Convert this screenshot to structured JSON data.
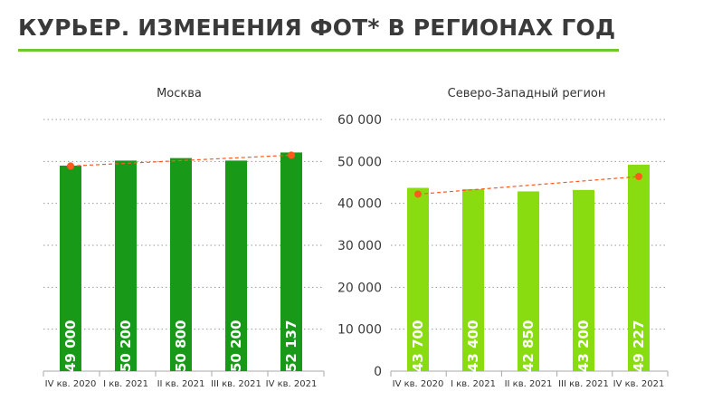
{
  "title": "КУРЬЕР. ИЗМЕНЕНИЯ ФОТ* В РЕГИОНАХ ГОД",
  "colors": {
    "accent": "#6fc82e",
    "moscow_bar": "#189a18",
    "nw_bar": "#88dc10",
    "trend": "#ff5a1e"
  },
  "chart_data": [
    {
      "type": "bar",
      "title": "Москва",
      "categories": [
        "IV кв. 2020",
        "I кв. 2021",
        "II кв. 2021",
        "III кв. 2021",
        "IV кв. 2021"
      ],
      "values": [
        49000,
        50200,
        50800,
        50200,
        52137
      ],
      "value_labels": [
        "49 000",
        "50 200",
        "50 800",
        "50 200",
        "52 137"
      ],
      "trendline": {
        "style": "dashed",
        "start": 48900,
        "end": 51500
      },
      "ylim": [
        0,
        60000
      ],
      "grid": true
    },
    {
      "type": "bar",
      "title": "Северо-Западный регион",
      "categories": [
        "IV кв. 2020",
        "I кв. 2021",
        "II кв. 2021",
        "III кв. 2021",
        "IV кв. 2021"
      ],
      "values": [
        43700,
        43400,
        42850,
        43200,
        49227
      ],
      "value_labels": [
        "43 700",
        "43 400",
        "42 850",
        "43 200",
        "49 227"
      ],
      "trendline": {
        "style": "dashed",
        "start": 42200,
        "end": 46400
      },
      "ylim": [
        0,
        60000
      ],
      "grid": true
    }
  ],
  "y_axis": {
    "ticks": [
      "0",
      "10 000",
      "20 000",
      "30 000",
      "40 000",
      "50 000",
      "60 000"
    ]
  }
}
